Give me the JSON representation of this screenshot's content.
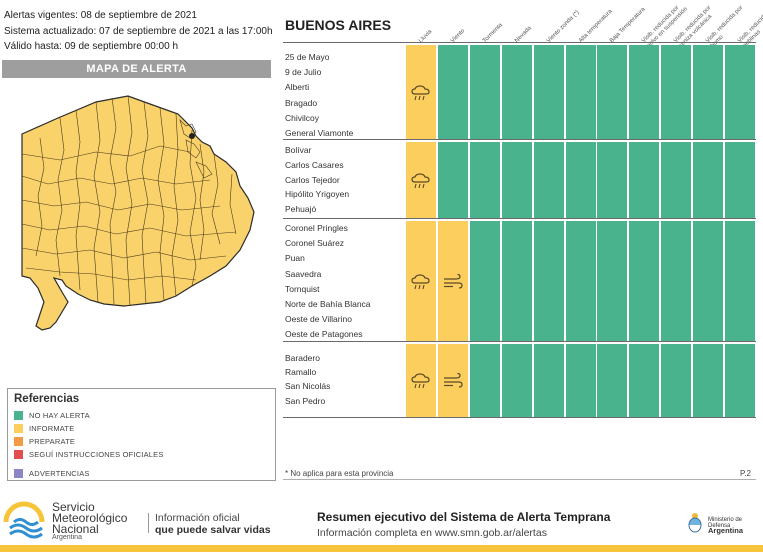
{
  "header": {
    "alert_date": "Alertas vigentes: 08 de septiembre de 2021",
    "updated": "Sistema actualizado: 07 de septiembre de 2021 a las 17:00h",
    "valid_until": "Válido hasta: 09 de septiembre 00:00 h"
  },
  "map": {
    "title": "MAPA DE ALERTA",
    "fill_color": "#f9d26b"
  },
  "references": {
    "title": "Referencias",
    "items": [
      {
        "label": "NO HAY ALERTA",
        "color": "#48b38c"
      },
      {
        "label": "INFORMATE",
        "color": "#fbce5e"
      },
      {
        "label": "PREPARATE",
        "color": "#f29a46"
      },
      {
        "label": "SEGUÍ INSTRUCCIONES OFICIALES",
        "color": "#e24d4d"
      },
      {
        "label": "ADVERTENCIAS",
        "color": "#8a86c6"
      }
    ]
  },
  "table": {
    "province": "BUENOS AIRES",
    "columns": [
      "Lluvia",
      "Viento",
      "Tormenta",
      "Nevada",
      "Viento zonda (*)",
      "Alta temperatura",
      "Baja Temperatura",
      "Visib. reducida por polvo en suspensión",
      "Visib. reducida por ceniza volcánica",
      "Visib. reducida por humo",
      "Visib. reducida por neblinas"
    ],
    "zones": [
      {
        "departments": [
          "25 de Mayo",
          "9 de Julio",
          "Alberti",
          "Bragado",
          "Chivilcoy",
          "General Viamonte"
        ],
        "levels": [
          "yellow",
          "green",
          "green",
          "green",
          "green",
          "green",
          "green",
          "green",
          "green",
          "green",
          "green"
        ],
        "icons": [
          "rain-icon"
        ]
      },
      {
        "departments": [
          "Bolívar",
          "Carlos Casares",
          "Carlos Tejedor",
          "Hipólito Yrigoyen",
          "Pehuajó"
        ],
        "levels": [
          "yellow",
          "green",
          "green",
          "green",
          "green",
          "green",
          "green",
          "green",
          "green",
          "green",
          "green"
        ],
        "icons": [
          "rain-icon"
        ]
      },
      {
        "departments": [
          "Coronel Pringles",
          "Coronel Suárez",
          "Puan",
          "Saavedra",
          "Tornquist",
          "Norte de Bahía Blanca",
          "Oeste de Villarino",
          "Oeste de Patagones"
        ],
        "levels": [
          "yellow",
          "yellow",
          "green",
          "green",
          "green",
          "green",
          "green",
          "green",
          "green",
          "green",
          "green"
        ],
        "icons": [
          "rain-icon",
          "wind-icon"
        ]
      },
      {
        "departments": [
          "Baradero",
          "Ramallo",
          "San Nicolás",
          "San Pedro"
        ],
        "levels": [
          "yellow",
          "yellow",
          "green",
          "green",
          "green",
          "green",
          "green",
          "green",
          "green",
          "green",
          "green"
        ],
        "icons": [
          "rain-icon",
          "wind-icon"
        ]
      }
    ],
    "note": "* No aplica para esta provincia",
    "page": "P.2"
  },
  "footer": {
    "org_line1": "Servicio",
    "org_line2": "Meteorológico",
    "org_line3": "Nacional",
    "country": "Argentina",
    "tagline1": "Información oficial",
    "tagline2": "que puede salvar vidas",
    "summary_title": "Resumen ejecutivo del Sistema de Alerta Temprana",
    "summary_sub": "Información completa en www.smn.gob.ar/alertas",
    "ministry_line1": "Ministerio de Defensa",
    "ministry_line2": "Argentina"
  }
}
